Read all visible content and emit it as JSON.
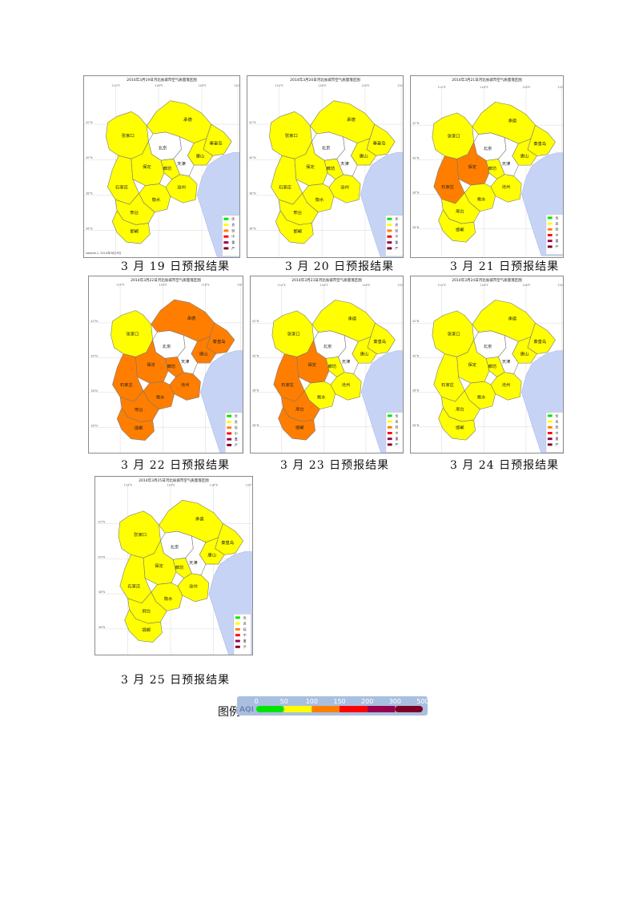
{
  "maps": [
    {
      "title": "2014年3月19日河北省城市空气质量落区图",
      "caption": "3 月 19 日预报结果",
      "note": "sample.1, 2014年3月19日",
      "levels": {
        "zhangjiakou": "good",
        "chengde": "good",
        "beijing": "none",
        "tianjin": "none",
        "tangshan": "good",
        "qinhuangdao": "good",
        "langfang": "good",
        "baoding": "good",
        "shijiazhuang": "good",
        "cangzhou": "good",
        "hengshui": "good",
        "xingtai": "good",
        "handan": "good"
      }
    },
    {
      "title": "2014年3月20日河北省城市空气质量落区图",
      "caption": "3 月 20 日预报结果",
      "note": "",
      "levels": {
        "zhangjiakou": "good",
        "chengde": "good",
        "beijing": "none",
        "tianjin": "none",
        "tangshan": "good",
        "qinhuangdao": "good",
        "langfang": "good",
        "baoding": "good",
        "shijiazhuang": "good",
        "cangzhou": "good",
        "hengshui": "good",
        "xingtai": "good",
        "handan": "good"
      }
    },
    {
      "title": "2014年3月21日河北省城市空气质量落区图",
      "caption": "3 月 21 日预报结果",
      "note": "",
      "levels": {
        "zhangjiakou": "good",
        "chengde": "good",
        "beijing": "none",
        "tianjin": "none",
        "tangshan": "good",
        "qinhuangdao": "good",
        "langfang": "good",
        "baoding": "light",
        "shijiazhuang": "light",
        "cangzhou": "good",
        "hengshui": "good",
        "xingtai": "good",
        "handan": "good"
      }
    },
    {
      "title": "2014年3月22日河北省城市空气质量落区图",
      "caption": "3 月 22 日预报结果",
      "note": "",
      "levels": {
        "zhangjiakou": "good",
        "chengde": "light",
        "beijing": "none",
        "tianjin": "none",
        "tangshan": "light",
        "qinhuangdao": "light",
        "langfang": "light",
        "baoding": "light",
        "shijiazhuang": "light",
        "cangzhou": "light",
        "hengshui": "light",
        "xingtai": "light",
        "handan": "light"
      }
    },
    {
      "title": "2014年3月23日河北省城市空气质量落区图",
      "caption": "3 月 23 日预报结果",
      "note": "",
      "levels": {
        "zhangjiakou": "good",
        "chengde": "good",
        "beijing": "none",
        "tianjin": "none",
        "tangshan": "good",
        "qinhuangdao": "good",
        "langfang": "good",
        "baoding": "light",
        "shijiazhuang": "light",
        "cangzhou": "good",
        "hengshui": "good",
        "xingtai": "light",
        "handan": "light"
      }
    },
    {
      "title": "2014年3月24日河北省城市空气质量落区图",
      "caption": "3 月 24 日预报结果",
      "note": "",
      "levels": {
        "zhangjiakou": "good",
        "chengde": "good",
        "beijing": "none",
        "tianjin": "none",
        "tangshan": "good",
        "qinhuangdao": "good",
        "langfang": "good",
        "baoding": "good",
        "shijiazhuang": "good",
        "cangzhou": "good",
        "hengshui": "good",
        "xingtai": "good",
        "handan": "good"
      }
    },
    {
      "title": "2014年3月25日河北省城市空气质量落区图",
      "caption": "3 月 25 日预报结果",
      "note": "",
      "levels": {
        "zhangjiakou": "good",
        "chengde": "good",
        "beijing": "none",
        "tianjin": "none",
        "tangshan": "good",
        "qinhuangdao": "good",
        "langfang": "good",
        "baoding": "good",
        "shijiazhuang": "good",
        "cangzhou": "good",
        "hengshui": "good",
        "xingtai": "good",
        "handan": "good"
      }
    }
  ],
  "city_names": {
    "zhangjiakou": "张家口",
    "chengde": "承德",
    "beijing": "北京",
    "tianjin": "天津",
    "tangshan": "唐山",
    "qinhuangdao": "秦皇岛",
    "langfang": "廊坊",
    "baoding": "保定",
    "shijiazhuang": "石家庄",
    "cangzhou": "沧州",
    "hengshui": "衡水",
    "xingtai": "邢台",
    "handan": "邯郸"
  },
  "level_colors": {
    "none": "#ffffff",
    "good": "#ffff00",
    "light": "#ff7e00",
    "sea": "#c6d3f5"
  },
  "map_legend": [
    {
      "label": "优",
      "color": "#00e400"
    },
    {
      "label": "良",
      "color": "#ffff00"
    },
    {
      "label": "轻",
      "color": "#ff7e00"
    },
    {
      "label": "中",
      "color": "#ff0000"
    },
    {
      "label": "重",
      "color": "#99004c"
    },
    {
      "label": "严",
      "color": "#7e0023"
    }
  ],
  "lat_ticks": [
    "42°N",
    "40°N",
    "38°N",
    "36°N"
  ],
  "lon_ticks": [
    "114°E",
    "116°E",
    "118°E",
    "120°E"
  ],
  "legend": {
    "label": "图例",
    "aqi_text": "AQI",
    "ticks": [
      "0",
      "50",
      "100",
      "150",
      "200",
      "300",
      "500"
    ],
    "segments": [
      "#00e400",
      "#ffff00",
      "#ff7e00",
      "#ff0000",
      "#99004c",
      "#7e0023"
    ]
  }
}
